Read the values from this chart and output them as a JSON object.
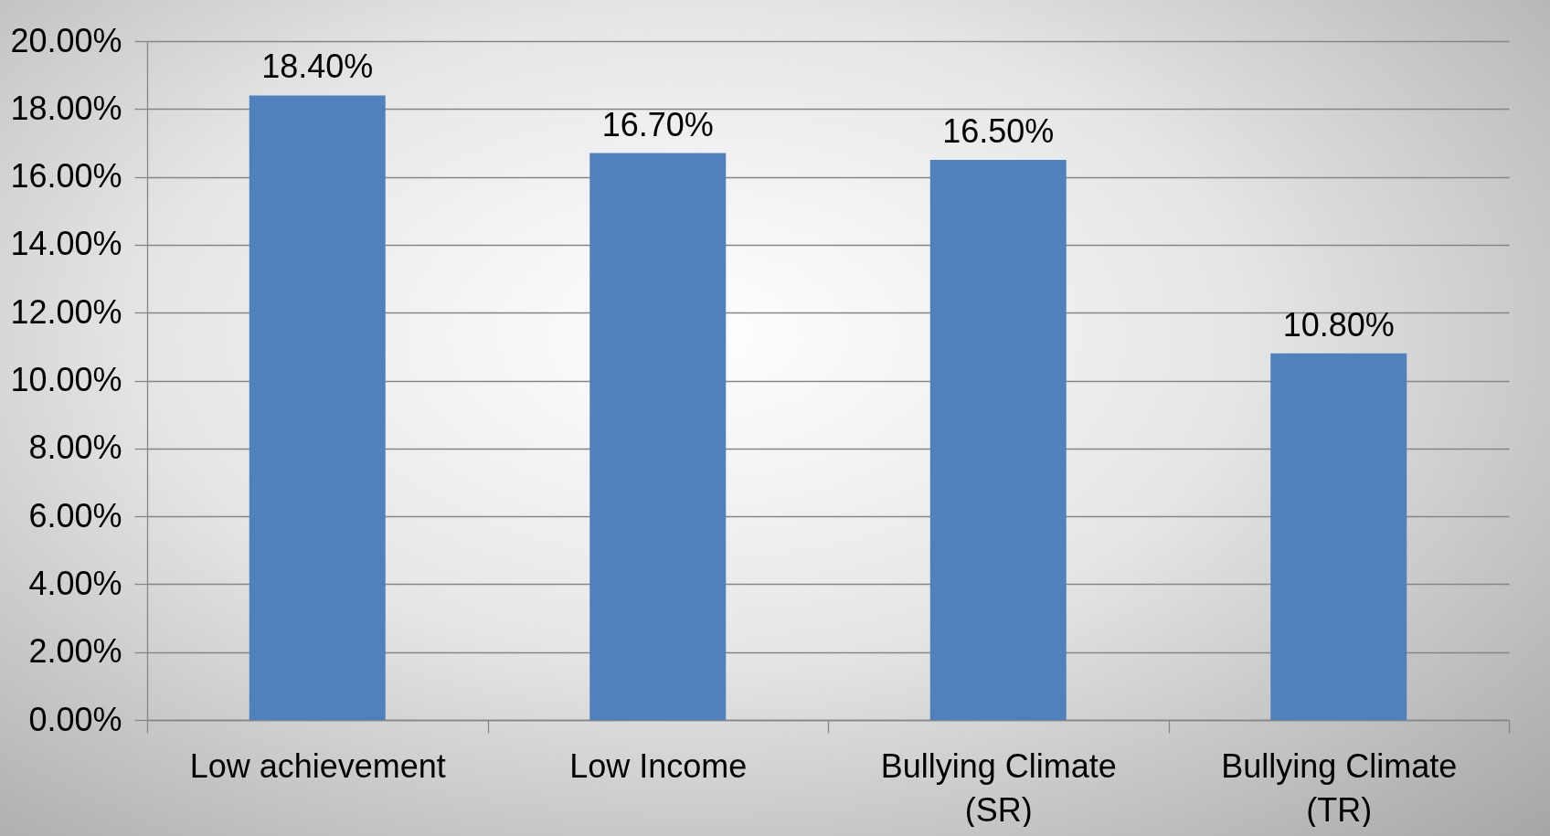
{
  "chart_data": {
    "type": "bar",
    "categories": [
      "Low achievement",
      "Low Income",
      "Bullying Climate (SR)",
      "Bullying Climate (TR)"
    ],
    "values": [
      18.4,
      16.7,
      16.5,
      10.8
    ],
    "value_labels": [
      "18.40%",
      "16.70%",
      "16.50%",
      "10.80%"
    ],
    "color": "#4f81bd",
    "ylim": [
      0,
      20
    ],
    "yticks": [
      {
        "value": 0,
        "label": "0.00%"
      },
      {
        "value": 2,
        "label": "2.00%"
      },
      {
        "value": 4,
        "label": "4.00%"
      },
      {
        "value": 6,
        "label": "6.00%"
      },
      {
        "value": 8,
        "label": "8.00%"
      },
      {
        "value": 10,
        "label": "10.00%"
      },
      {
        "value": 12,
        "label": "12.00%"
      },
      {
        "value": 14,
        "label": "14.00%"
      },
      {
        "value": 16,
        "label": "16.00%"
      },
      {
        "value": 18,
        "label": "18.00%"
      },
      {
        "value": 20,
        "label": "20.00%"
      }
    ],
    "grid": "y"
  }
}
